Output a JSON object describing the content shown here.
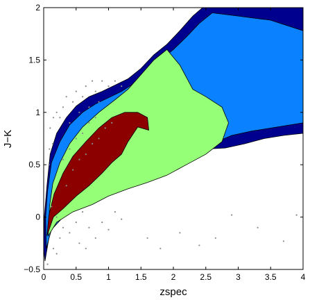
{
  "chart_data": {
    "type": "contour",
    "xlabel": "zspec",
    "ylabel": "J−K",
    "xlim": [
      0,
      4
    ],
    "ylim": [
      -0.5,
      2
    ],
    "xticks": [
      0,
      0.5,
      1,
      1.5,
      2,
      2.5,
      3,
      3.5,
      4
    ],
    "xtick_labels": [
      "0",
      "0.5",
      "1",
      "1.5",
      "2",
      "2.5",
      "3",
      "3.5",
      "4"
    ],
    "yticks": [
      -0.5,
      0,
      0.5,
      1,
      1.5,
      2
    ],
    "ytick_labels": [
      "−0.5",
      "0",
      "0.5",
      "1",
      "1.5",
      "2"
    ],
    "grid": false,
    "levels": [
      {
        "color": "#00008f",
        "polygon": [
          [
            0.02,
            -0.42
          ],
          [
            0.08,
            -0.2
          ],
          [
            0.15,
            -0.05
          ],
          [
            0.3,
            0.05
          ],
          [
            0.5,
            0.15
          ],
          [
            0.8,
            0.25
          ],
          [
            1.1,
            0.35
          ],
          [
            1.4,
            0.42
          ],
          [
            1.6,
            0.5
          ],
          [
            1.9,
            0.58
          ],
          [
            2.2,
            0.62
          ],
          [
            2.5,
            0.65
          ],
          [
            2.8,
            0.66
          ],
          [
            3.1,
            0.7
          ],
          [
            3.4,
            0.75
          ],
          [
            3.7,
            0.78
          ],
          [
            4.0,
            0.8
          ],
          [
            4.0,
            2.0
          ],
          [
            2.45,
            2.0
          ],
          [
            2.3,
            1.92
          ],
          [
            2.1,
            1.78
          ],
          [
            1.9,
            1.65
          ],
          [
            1.7,
            1.55
          ],
          [
            1.5,
            1.42
          ],
          [
            1.3,
            1.32
          ],
          [
            1.1,
            1.26
          ],
          [
            0.9,
            1.2
          ],
          [
            0.7,
            1.15
          ],
          [
            0.5,
            1.06
          ],
          [
            0.35,
            0.95
          ],
          [
            0.2,
            0.8
          ],
          [
            0.1,
            0.6
          ],
          [
            0.05,
            0.3
          ],
          [
            0.01,
            0.0
          ],
          [
            0.0,
            -0.3
          ]
        ]
      },
      {
        "color": "#0a82ff",
        "polygon": [
          [
            0.04,
            -0.3
          ],
          [
            0.12,
            -0.12
          ],
          [
            0.3,
            0.0
          ],
          [
            0.55,
            0.1
          ],
          [
            0.85,
            0.18
          ],
          [
            1.15,
            0.27
          ],
          [
            1.45,
            0.35
          ],
          [
            1.7,
            0.42
          ],
          [
            2.0,
            0.52
          ],
          [
            2.3,
            0.6
          ],
          [
            2.6,
            0.7
          ],
          [
            2.9,
            0.78
          ],
          [
            3.2,
            0.82
          ],
          [
            3.6,
            0.86
          ],
          [
            4.0,
            0.9
          ],
          [
            4.0,
            1.78
          ],
          [
            3.5,
            1.88
          ],
          [
            3.0,
            1.92
          ],
          [
            2.6,
            1.95
          ],
          [
            2.4,
            1.85
          ],
          [
            2.2,
            1.72
          ],
          [
            2.0,
            1.6
          ],
          [
            1.8,
            1.5
          ],
          [
            1.6,
            1.38
          ],
          [
            1.4,
            1.28
          ],
          [
            1.2,
            1.2
          ],
          [
            1.0,
            1.14
          ],
          [
            0.8,
            1.08
          ],
          [
            0.6,
            1.0
          ],
          [
            0.4,
            0.88
          ],
          [
            0.25,
            0.72
          ],
          [
            0.12,
            0.52
          ],
          [
            0.06,
            0.25
          ],
          [
            0.03,
            0.0
          ]
        ]
      },
      {
        "color": "#96ff78",
        "polygon": [
          [
            0.07,
            -0.18
          ],
          [
            0.2,
            -0.05
          ],
          [
            0.45,
            0.05
          ],
          [
            0.75,
            0.12
          ],
          [
            1.0,
            0.2
          ],
          [
            1.3,
            0.27
          ],
          [
            1.6,
            0.33
          ],
          [
            1.9,
            0.4
          ],
          [
            2.2,
            0.5
          ],
          [
            2.5,
            0.6
          ],
          [
            2.75,
            0.72
          ],
          [
            2.85,
            0.9
          ],
          [
            2.75,
            1.05
          ],
          [
            2.5,
            1.15
          ],
          [
            2.3,
            1.22
          ],
          [
            2.1,
            1.45
          ],
          [
            1.9,
            1.6
          ],
          [
            1.7,
            1.5
          ],
          [
            1.5,
            1.36
          ],
          [
            1.3,
            1.22
          ],
          [
            1.1,
            1.12
          ],
          [
            0.85,
            1.0
          ],
          [
            0.6,
            0.86
          ],
          [
            0.4,
            0.7
          ],
          [
            0.25,
            0.52
          ],
          [
            0.14,
            0.32
          ],
          [
            0.09,
            0.1
          ]
        ]
      },
      {
        "color": "#8c0000",
        "polygon": [
          [
            0.05,
            -0.18
          ],
          [
            0.15,
            0.0
          ],
          [
            0.3,
            0.08
          ],
          [
            0.5,
            0.2
          ],
          [
            0.7,
            0.3
          ],
          [
            0.9,
            0.42
          ],
          [
            1.05,
            0.52
          ],
          [
            1.2,
            0.6
          ],
          [
            1.3,
            0.72
          ],
          [
            1.45,
            0.86
          ],
          [
            1.62,
            0.83
          ],
          [
            1.6,
            0.95
          ],
          [
            1.45,
            1.0
          ],
          [
            1.25,
            1.0
          ],
          [
            1.05,
            0.95
          ],
          [
            0.85,
            0.85
          ],
          [
            0.65,
            0.72
          ],
          [
            0.45,
            0.58
          ],
          [
            0.3,
            0.42
          ],
          [
            0.16,
            0.22
          ],
          [
            0.08,
            0.02
          ]
        ]
      }
    ],
    "scatter": [
      [
        0.1,
        0.85
      ],
      [
        0.15,
        0.95
      ],
      [
        0.2,
        1.0
      ],
      [
        0.25,
        0.95
      ],
      [
        0.3,
        1.05
      ],
      [
        0.35,
        1.15
      ],
      [
        0.4,
        0.9
      ],
      [
        0.45,
        1.1
      ],
      [
        0.5,
        1.2
      ],
      [
        0.55,
        1.0
      ],
      [
        0.6,
        1.15
      ],
      [
        0.65,
        1.25
      ],
      [
        0.7,
        1.05
      ],
      [
        0.75,
        1.3
      ],
      [
        0.8,
        1.2
      ],
      [
        0.85,
        1.1
      ],
      [
        0.9,
        1.3
      ],
      [
        1.0,
        1.25
      ],
      [
        1.1,
        1.3
      ],
      [
        1.2,
        1.25
      ],
      [
        0.12,
        0.1
      ],
      [
        0.2,
        0.0
      ],
      [
        0.3,
        -0.1
      ],
      [
        0.4,
        -0.15
      ],
      [
        0.5,
        -0.05
      ],
      [
        0.6,
        0.05
      ],
      [
        0.7,
        -0.1
      ],
      [
        0.8,
        -0.2
      ],
      [
        0.9,
        -0.05
      ],
      [
        1.0,
        -0.12
      ],
      [
        1.1,
        0.05
      ],
      [
        1.2,
        -0.02
      ],
      [
        0.55,
        -0.25
      ],
      [
        0.65,
        -0.3
      ],
      [
        0.25,
        -0.2
      ],
      [
        0.15,
        -0.3
      ],
      [
        0.35,
        0.3
      ],
      [
        0.45,
        0.45
      ],
      [
        0.55,
        0.55
      ],
      [
        0.65,
        0.6
      ],
      [
        0.75,
        0.7
      ],
      [
        0.85,
        0.75
      ],
      [
        0.95,
        0.85
      ],
      [
        1.05,
        0.9
      ],
      [
        0.3,
        0.55
      ],
      [
        0.4,
        0.65
      ],
      [
        0.5,
        0.75
      ],
      [
        0.6,
        0.8
      ],
      [
        0.7,
        0.9
      ],
      [
        0.8,
        0.95
      ],
      [
        2.1,
        -0.15
      ],
      [
        2.65,
        -0.2
      ],
      [
        2.9,
        0.02
      ],
      [
        3.3,
        -0.1
      ],
      [
        3.7,
        -0.23
      ],
      [
        3.9,
        0.02
      ],
      [
        2.4,
        -0.27
      ],
      [
        1.8,
        -0.3
      ],
      [
        1.6,
        -0.2
      ],
      [
        0.2,
        -0.35
      ],
      [
        0.06,
        -0.45
      ],
      [
        0.08,
        0.5
      ],
      [
        0.09,
        0.65
      ],
      [
        0.14,
        0.7
      ]
    ]
  }
}
